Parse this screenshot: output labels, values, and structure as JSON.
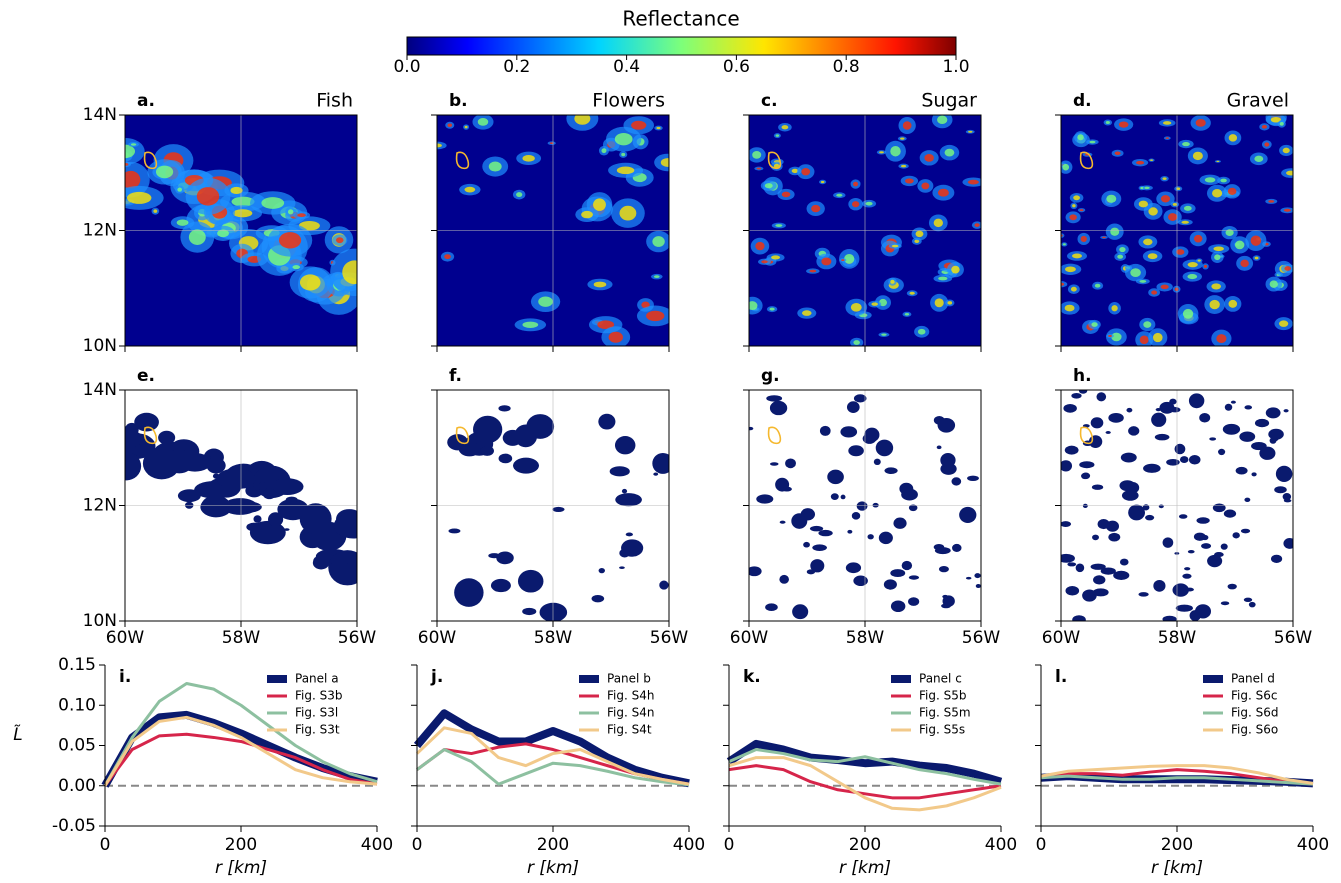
{
  "colorbar": {
    "title": "Reflectance",
    "ticks": [
      {
        "value": 0,
        "label": "0.0"
      },
      0.2,
      0.4,
      0.6,
      0.8,
      {
        "value": 1,
        "label": "1.0"
      }
    ]
  },
  "maps": {
    "panels": [
      {
        "letter": "a.",
        "title": "Fish"
      },
      {
        "letter": "b.",
        "title": "Flowers"
      },
      {
        "letter": "c.",
        "title": "Sugar"
      },
      {
        "letter": "d.",
        "title": "Gravel"
      },
      {
        "letter": "e."
      },
      {
        "letter": "f."
      },
      {
        "letter": "g."
      },
      {
        "letter": "h."
      }
    ],
    "lat_labels": [
      "14N",
      "12N",
      "10N"
    ],
    "lon_labels": [
      "60W",
      "58W",
      "56W"
    ]
  },
  "chart_data": [
    {
      "type": "line",
      "label": "i.",
      "ylabel": "L̃",
      "xlabel": "r [km]",
      "x": [
        0,
        40,
        80,
        120,
        160,
        200,
        240,
        280,
        320,
        360,
        400
      ],
      "xlim": [
        0,
        400
      ],
      "ylim": [
        -0.05,
        0.15
      ],
      "xticks": [
        0,
        200,
        400
      ],
      "yticks": [
        -0.05,
        {
          "value": 0,
          "label": "0.00"
        },
        0.05,
        {
          "value": 0.1,
          "label": "0.10"
        },
        0.15
      ],
      "series": [
        {
          "name": "Panel a",
          "color": "#0a1a6e",
          "values": [
            0,
            0.06,
            0.085,
            0.088,
            0.078,
            0.065,
            0.05,
            0.035,
            0.022,
            0.012,
            0.005
          ]
        },
        {
          "name": "Fig. S3b",
          "color": "#d6254a",
          "values": [
            0,
            0.045,
            0.062,
            0.064,
            0.06,
            0.055,
            0.045,
            0.035,
            0.02,
            0.008,
            0.002
          ]
        },
        {
          "name": "Fig. S3l",
          "color": "#8dc0a0",
          "values": [
            0,
            0.06,
            0.105,
            0.127,
            0.12,
            0.1,
            0.075,
            0.05,
            0.03,
            0.015,
            0.005
          ]
        },
        {
          "name": "Fig. S3t",
          "color": "#f2c98a",
          "values": [
            0,
            0.055,
            0.08,
            0.085,
            0.075,
            0.06,
            0.04,
            0.02,
            0.01,
            0.005,
            0.002
          ]
        }
      ]
    },
    {
      "type": "line",
      "label": "j.",
      "xlabel": "r [km]",
      "x": [
        0,
        40,
        80,
        120,
        160,
        200,
        240,
        280,
        320,
        360,
        400
      ],
      "xlim": [
        0,
        400
      ],
      "ylim": [
        -0.05,
        0.15
      ],
      "xticks": [
        0,
        200,
        400
      ],
      "series": [
        {
          "name": "Panel b",
          "color": "#0a1a6e",
          "values": [
            0.05,
            0.09,
            0.07,
            0.055,
            0.055,
            0.068,
            0.055,
            0.035,
            0.02,
            0.01,
            0.003
          ]
        },
        {
          "name": "Fig. S4h",
          "color": "#d6254a",
          "values": [
            0.02,
            0.045,
            0.04,
            0.048,
            0.052,
            0.045,
            0.035,
            0.025,
            0.015,
            0.008,
            0.002
          ]
        },
        {
          "name": "Fig. S4n",
          "color": "#8dc0a0",
          "values": [
            0.02,
            0.045,
            0.03,
            0.002,
            0.015,
            0.028,
            0.025,
            0.018,
            0.01,
            0.005,
            0.001
          ]
        },
        {
          "name": "Fig. S4t",
          "color": "#f2c98a",
          "values": [
            0.04,
            0.072,
            0.065,
            0.035,
            0.025,
            0.04,
            0.045,
            0.03,
            0.015,
            0.008,
            0.002
          ]
        }
      ]
    },
    {
      "type": "line",
      "label": "k.",
      "xlabel": "r [km]",
      "x": [
        0,
        40,
        80,
        120,
        160,
        200,
        240,
        280,
        320,
        360,
        400
      ],
      "xlim": [
        0,
        400
      ],
      "ylim": [
        -0.05,
        0.15
      ],
      "xticks": [
        0,
        200,
        400
      ],
      "series": [
        {
          "name": "Panel c",
          "color": "#0a1a6e",
          "values": [
            0.03,
            0.052,
            0.045,
            0.035,
            0.032,
            0.028,
            0.03,
            0.025,
            0.022,
            0.015,
            0.005
          ]
        },
        {
          "name": "Fig. S5b",
          "color": "#d6254a",
          "values": [
            0.02,
            0.025,
            0.02,
            0.005,
            -0.005,
            -0.01,
            -0.015,
            -0.015,
            -0.01,
            -0.005,
            0
          ]
        },
        {
          "name": "Fig. S5m",
          "color": "#8dc0a0",
          "values": [
            0.03,
            0.045,
            0.04,
            0.032,
            0.03,
            0.036,
            0.028,
            0.02,
            0.015,
            0.008,
            0.002
          ]
        },
        {
          "name": "Fig. S5s",
          "color": "#f2c98a",
          "values": [
            0.025,
            0.035,
            0.035,
            0.025,
            0.005,
            -0.015,
            -0.028,
            -0.03,
            -0.025,
            -0.015,
            -0.002
          ]
        }
      ]
    },
    {
      "type": "line",
      "label": "l.",
      "xlabel": "r [km]",
      "x": [
        0,
        40,
        80,
        120,
        160,
        200,
        240,
        280,
        320,
        360,
        400
      ],
      "xlim": [
        0,
        400
      ],
      "ylim": [
        -0.05,
        0.15
      ],
      "xticks": [
        0,
        200,
        400
      ],
      "series": [
        {
          "name": "Panel d",
          "color": "#0a1a6e",
          "values": [
            0.01,
            0.012,
            0.01,
            0.008,
            0.008,
            0.008,
            0.008,
            0.007,
            0.006,
            0.005,
            0.003
          ]
        },
        {
          "name": "Fig. S6c",
          "color": "#d6254a",
          "values": [
            0.01,
            0.015,
            0.015,
            0.013,
            0.017,
            0.02,
            0.018,
            0.015,
            0.01,
            0.005,
            0.002
          ]
        },
        {
          "name": "Fig. S6d",
          "color": "#8dc0a0",
          "values": [
            0.01,
            0.012,
            0.01,
            0.008,
            0.008,
            0.01,
            0.01,
            0.008,
            0.006,
            0.004,
            0.002
          ]
        },
        {
          "name": "Fig. S6o",
          "color": "#f2c98a",
          "values": [
            0.012,
            0.018,
            0.02,
            0.022,
            0.024,
            0.025,
            0.025,
            0.022,
            0.016,
            0.008,
            0.003
          ]
        }
      ]
    }
  ]
}
